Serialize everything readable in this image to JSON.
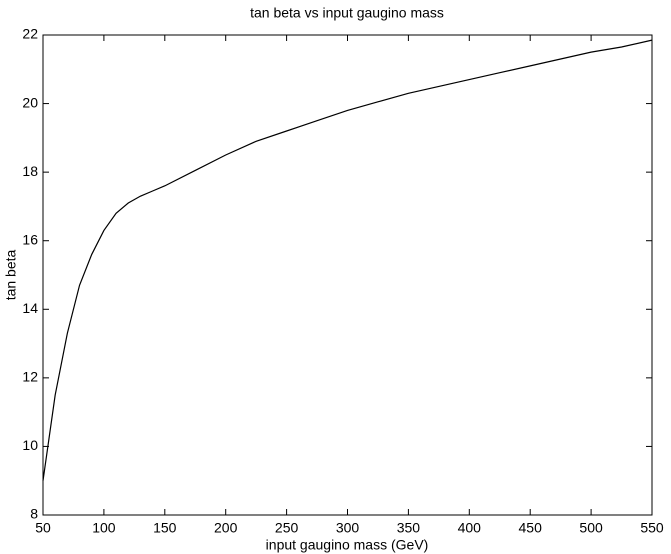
{
  "chart_data": {
    "type": "line",
    "title": "tan beta vs input gaugino mass",
    "x_label": "input gaugino mass (GeV)",
    "y_label": "tan beta",
    "x": [
      50,
      60,
      70,
      80,
      90,
      100,
      110,
      120,
      130,
      140,
      150,
      175,
      200,
      225,
      250,
      275,
      300,
      325,
      350,
      375,
      400,
      425,
      450,
      475,
      500,
      525,
      550
    ],
    "values": [
      9.0,
      11.5,
      13.3,
      14.7,
      15.6,
      16.3,
      16.8,
      17.1,
      17.3,
      17.45,
      17.6,
      18.05,
      18.5,
      18.9,
      19.2,
      19.5,
      19.8,
      20.05,
      20.3,
      20.5,
      20.7,
      20.9,
      21.1,
      21.3,
      21.5,
      21.65,
      21.85
    ],
    "color": "#000000",
    "xlim": [
      50,
      550
    ],
    "xticks": [
      50,
      100,
      150,
      200,
      250,
      300,
      350,
      400,
      450,
      500,
      550
    ],
    "ylim": [
      8,
      22
    ],
    "yticks": [
      8,
      10,
      12,
      14,
      16,
      18,
      20,
      22
    ],
    "grid": false
  }
}
